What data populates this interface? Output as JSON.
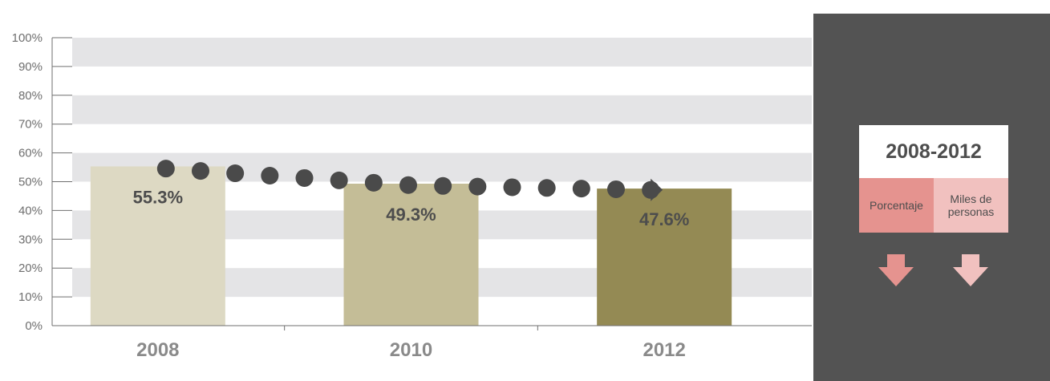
{
  "chart_data": {
    "type": "bar",
    "categories": [
      "2008",
      "2010",
      "2012"
    ],
    "values": [
      55.3,
      49.3,
      47.6
    ],
    "value_labels": [
      "55.3%",
      "49.3%",
      "47.6%"
    ],
    "ylim": [
      0,
      100
    ],
    "yticks": [
      "0%",
      "10%",
      "20%",
      "30%",
      "40%",
      "50%",
      "60%",
      "70%",
      "80%",
      "90%",
      "100%"
    ],
    "bar_colors": [
      "#ddd9c3",
      "#c4bd97",
      "#948a54"
    ],
    "band_color": "#e4e4e6",
    "trend_color": "#4a4a4a",
    "grid": "horizontal bands",
    "legend_position": "right"
  },
  "legend": {
    "title": "2008-2012",
    "items": [
      {
        "label": "Porcentaje",
        "color": "#e5938f",
        "arrow": "down-arrow-icon",
        "arrow_color": "#e5938f"
      },
      {
        "label": "Miles de personas",
        "color": "#f1c1bf",
        "arrow": "down-arrow-icon",
        "arrow_color": "#f1c1bf"
      }
    ]
  },
  "panel_color": "#535353"
}
